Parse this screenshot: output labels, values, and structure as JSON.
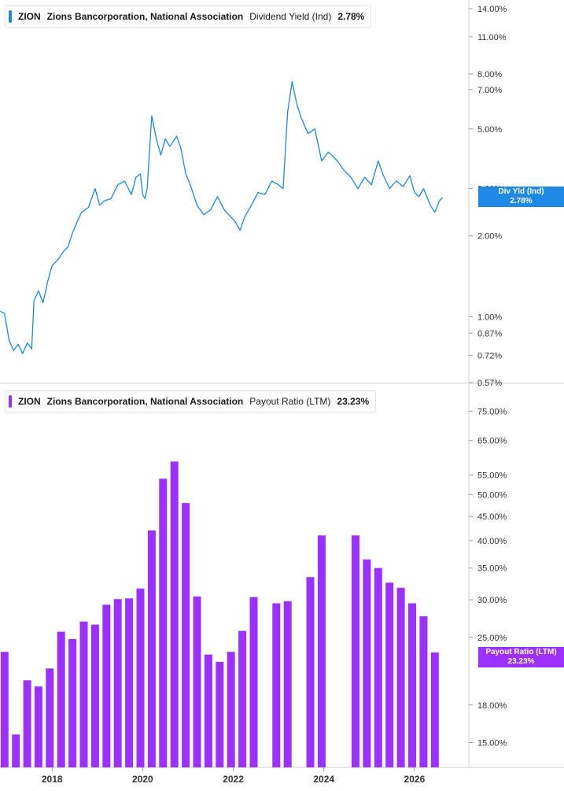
{
  "panels": {
    "top": {
      "legend": {
        "ticker": "ZION",
        "company": "Zions Bancorporation, National Association",
        "metric": "Dividend Yield (Ind)",
        "value": "2.78%",
        "color": "#1e88e5"
      },
      "badge": {
        "line1": "Div Yld (Ind)",
        "line2": "2.78%"
      }
    },
    "bottom": {
      "legend": {
        "ticker": "ZION",
        "company": "Zions Bancorporation, National Association",
        "metric": "Payout Ratio (LTM)",
        "value": "23.23%",
        "color": "#9b30ff"
      },
      "badge": {
        "line1": "Payout Ratio (LTM)",
        "line2": "23.23%"
      }
    }
  },
  "chart_data": [
    {
      "type": "line",
      "series_label": "Dividend Yield (Ind)",
      "color": "#1e88e5",
      "y_scale": "log",
      "ylim": [
        0.57,
        14.0
      ],
      "y_ticks": [
        {
          "value": 14.0,
          "label": "14.00%"
        },
        {
          "value": 11.0,
          "label": "11.00%"
        },
        {
          "value": 8.0,
          "label": "8.00%"
        },
        {
          "value": 7.0,
          "label": "7.00%"
        },
        {
          "value": 5.0,
          "label": "5.00%"
        },
        {
          "value": 3.0,
          "label": "3.00%"
        },
        {
          "value": 2.0,
          "label": "2.00%"
        },
        {
          "value": 1.0,
          "label": "1.00%"
        },
        {
          "value": 0.87,
          "label": "0.87%"
        },
        {
          "value": 0.72,
          "label": "0.72%"
        },
        {
          "value": 0.57,
          "label": "0.57%"
        }
      ],
      "xlim": [
        2016.85,
        2027.2
      ],
      "points": [
        [
          2016.85,
          1.05
        ],
        [
          2016.95,
          1.03
        ],
        [
          2017.05,
          0.82
        ],
        [
          2017.15,
          0.75
        ],
        [
          2017.25,
          0.79
        ],
        [
          2017.35,
          0.73
        ],
        [
          2017.45,
          0.8
        ],
        [
          2017.55,
          0.76
        ],
        [
          2017.6,
          1.15
        ],
        [
          2017.7,
          1.25
        ],
        [
          2017.8,
          1.13
        ],
        [
          2017.9,
          1.35
        ],
        [
          2018.0,
          1.55
        ],
        [
          2018.15,
          1.65
        ],
        [
          2018.25,
          1.75
        ],
        [
          2018.35,
          1.82
        ],
        [
          2018.45,
          2.05
        ],
        [
          2018.55,
          2.25
        ],
        [
          2018.65,
          2.45
        ],
        [
          2018.8,
          2.55
        ],
        [
          2018.95,
          3.0
        ],
        [
          2019.05,
          2.6
        ],
        [
          2019.15,
          2.7
        ],
        [
          2019.3,
          2.75
        ],
        [
          2019.45,
          3.1
        ],
        [
          2019.6,
          3.2
        ],
        [
          2019.75,
          2.85
        ],
        [
          2019.85,
          3.3
        ],
        [
          2019.95,
          3.4
        ],
        [
          2020.0,
          2.85
        ],
        [
          2020.05,
          2.75
        ],
        [
          2020.1,
          3.0
        ],
        [
          2020.2,
          5.6
        ],
        [
          2020.3,
          4.6
        ],
        [
          2020.4,
          4.0
        ],
        [
          2020.5,
          4.6
        ],
        [
          2020.6,
          4.3
        ],
        [
          2020.75,
          4.7
        ],
        [
          2020.85,
          4.2
        ],
        [
          2020.95,
          3.4
        ],
        [
          2021.05,
          3.1
        ],
        [
          2021.2,
          2.6
        ],
        [
          2021.35,
          2.4
        ],
        [
          2021.5,
          2.5
        ],
        [
          2021.65,
          2.8
        ],
        [
          2021.8,
          2.5
        ],
        [
          2021.95,
          2.35
        ],
        [
          2022.05,
          2.25
        ],
        [
          2022.15,
          2.1
        ],
        [
          2022.25,
          2.35
        ],
        [
          2022.4,
          2.6
        ],
        [
          2022.55,
          2.9
        ],
        [
          2022.7,
          2.85
        ],
        [
          2022.85,
          3.2
        ],
        [
          2023.0,
          3.1
        ],
        [
          2023.1,
          3.0
        ],
        [
          2023.2,
          5.8
        ],
        [
          2023.3,
          7.5
        ],
        [
          2023.4,
          6.2
        ],
        [
          2023.5,
          5.5
        ],
        [
          2023.65,
          4.8
        ],
        [
          2023.8,
          5.0
        ],
        [
          2023.95,
          3.8
        ],
        [
          2024.1,
          4.1
        ],
        [
          2024.3,
          3.8
        ],
        [
          2024.45,
          3.5
        ],
        [
          2024.6,
          3.3
        ],
        [
          2024.75,
          3.0
        ],
        [
          2024.9,
          3.3
        ],
        [
          2025.05,
          3.1
        ],
        [
          2025.2,
          3.8
        ],
        [
          2025.3,
          3.4
        ],
        [
          2025.45,
          3.0
        ],
        [
          2025.6,
          3.2
        ],
        [
          2025.75,
          3.05
        ],
        [
          2025.9,
          3.35
        ],
        [
          2026.0,
          2.9
        ],
        [
          2026.1,
          2.8
        ],
        [
          2026.2,
          3.0
        ],
        [
          2026.35,
          2.6
        ],
        [
          2026.45,
          2.45
        ],
        [
          2026.55,
          2.7
        ],
        [
          2026.62,
          2.78
        ]
      ]
    },
    {
      "type": "bar",
      "series_label": "Payout Ratio (LTM)",
      "color": "#9b30ff",
      "y_scale": "log",
      "ylim": [
        14.3,
        78.0
      ],
      "y_ticks": [
        {
          "value": 75,
          "label": "75.00%"
        },
        {
          "value": 65,
          "label": "65.00%"
        },
        {
          "value": 55,
          "label": "55.00%"
        },
        {
          "value": 50,
          "label": "50.00%"
        },
        {
          "value": 45,
          "label": "45.00%"
        },
        {
          "value": 40,
          "label": "40.00%"
        },
        {
          "value": 35,
          "label": "35.00%"
        },
        {
          "value": 30,
          "label": "30.00%"
        },
        {
          "value": 25,
          "label": "25.00%"
        },
        {
          "value": 18,
          "label": "18.00%"
        },
        {
          "value": 15,
          "label": "15.00%"
        }
      ],
      "xlim": [
        2016.85,
        2027.2
      ],
      "x_ticks": [
        {
          "value": 2018,
          "label": "2018"
        },
        {
          "value": 2020,
          "label": "2020"
        },
        {
          "value": 2022,
          "label": "2022"
        },
        {
          "value": 2024,
          "label": "2024"
        },
        {
          "value": 2026,
          "label": "2026"
        }
      ],
      "bars": [
        {
          "x": 2016.95,
          "value": 23.3
        },
        {
          "x": 2017.2,
          "value": 15.6
        },
        {
          "x": 2017.45,
          "value": 20.3
        },
        {
          "x": 2017.7,
          "value": 19.7
        },
        {
          "x": 2017.95,
          "value": 21.5
        },
        {
          "x": 2018.2,
          "value": 25.7
        },
        {
          "x": 2018.45,
          "value": 24.8
        },
        {
          "x": 2018.7,
          "value": 27.0
        },
        {
          "x": 2018.95,
          "value": 26.6
        },
        {
          "x": 2019.2,
          "value": 29.3
        },
        {
          "x": 2019.45,
          "value": 30.1
        },
        {
          "x": 2019.7,
          "value": 30.2
        },
        {
          "x": 2019.95,
          "value": 31.7
        },
        {
          "x": 2020.2,
          "value": 42.0
        },
        {
          "x": 2020.45,
          "value": 54.0
        },
        {
          "x": 2020.7,
          "value": 58.7
        },
        {
          "x": 2020.95,
          "value": 48.0
        },
        {
          "x": 2021.2,
          "value": 30.5
        },
        {
          "x": 2021.45,
          "value": 23.0
        },
        {
          "x": 2021.7,
          "value": 22.2
        },
        {
          "x": 2021.95,
          "value": 23.3
        },
        {
          "x": 2022.2,
          "value": 25.8
        },
        {
          "x": 2022.45,
          "value": 30.4
        },
        {
          "x": 2022.7,
          "value": null
        },
        {
          "x": 2022.95,
          "value": 29.5
        },
        {
          "x": 2023.2,
          "value": 29.8
        },
        {
          "x": 2023.45,
          "value": null
        },
        {
          "x": 2023.7,
          "value": 33.5
        },
        {
          "x": 2023.95,
          "value": 41.0
        },
        {
          "x": 2024.2,
          "value": null
        },
        {
          "x": 2024.45,
          "value": null
        },
        {
          "x": 2024.7,
          "value": 41.0
        },
        {
          "x": 2024.95,
          "value": 36.5
        },
        {
          "x": 2025.2,
          "value": 35.0
        },
        {
          "x": 2025.45,
          "value": 32.6
        },
        {
          "x": 2025.7,
          "value": 31.8
        },
        {
          "x": 2025.95,
          "value": 29.5
        },
        {
          "x": 2026.2,
          "value": 27.7
        },
        {
          "x": 2026.45,
          "value": 23.23
        }
      ]
    }
  ]
}
